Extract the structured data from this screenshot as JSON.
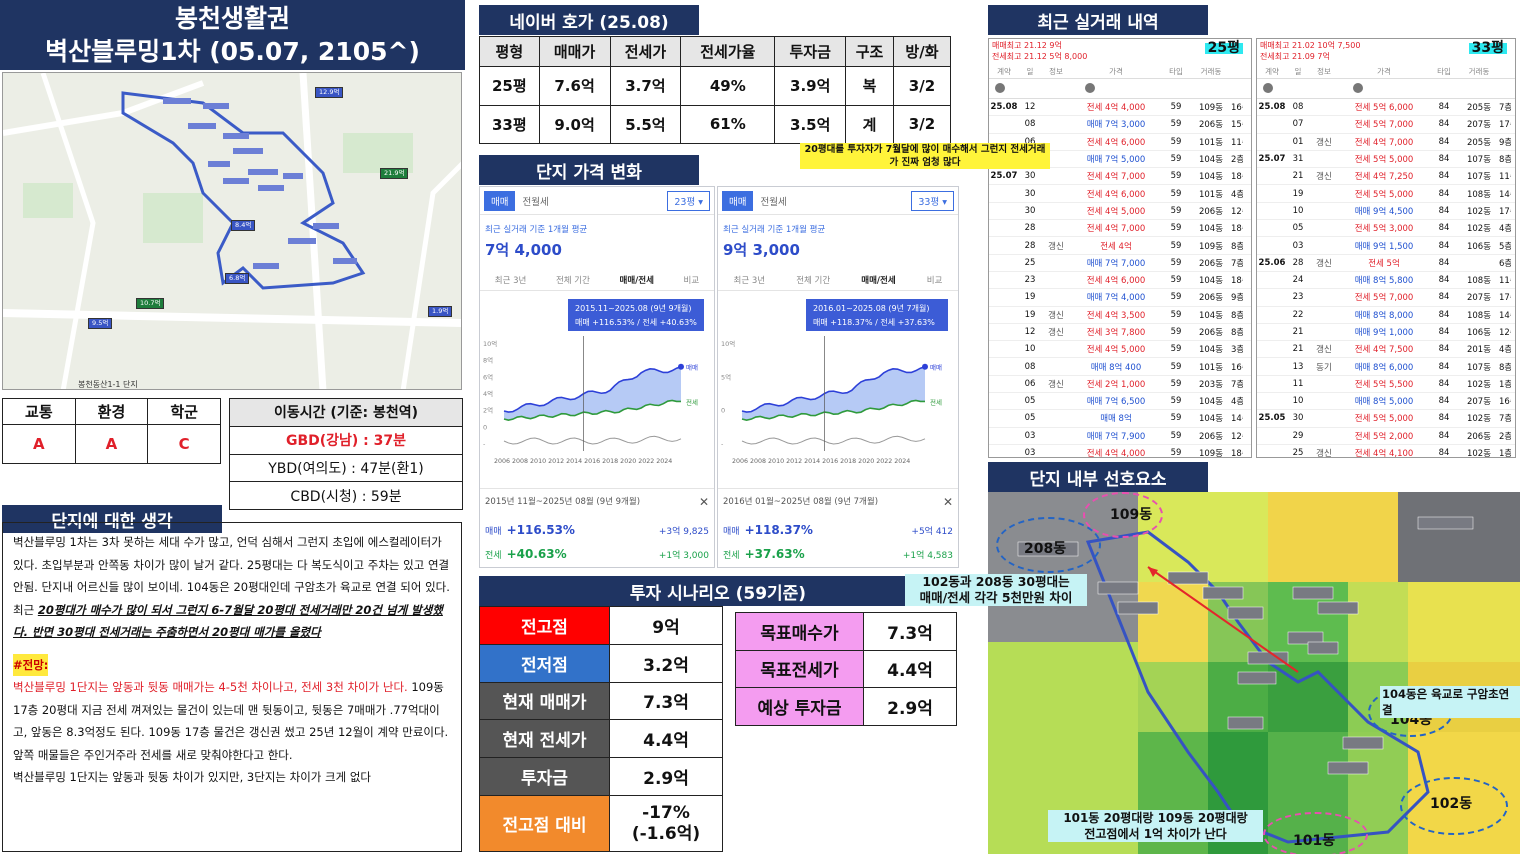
{
  "title": {
    "line1": "봉천생활권",
    "line2": "벽산블루밍1차 (05.07, 2105^)"
  },
  "scores": {
    "headers": [
      "교통",
      "환경",
      "학군"
    ],
    "values": [
      "A",
      "A",
      "C"
    ]
  },
  "commute": {
    "title": "이동시간 (기준: 봉천역)",
    "gbd": "GBD(강남) : 37분",
    "ybd": "YBD(여의도) : 47분(환1)",
    "cbd": "CBD(시청) : 59분"
  },
  "thoughts": {
    "title": "단지에 대한 생각",
    "p1": "벽산블루밍 1차는 3차 못하는 세대 수가 많고, 언덕 심해서 그런지 초입에 에스컬레이터가 있다. 초입부분과 안쪽동 차이가 많이 날거 같다. 25평대는 다 복도식이고 주차는 있고 연결 안됨. 단지내 어르신들 많이 보이네. 104동은 20평대인데 구암초가 육교로 연결 되어 있다.",
    "p2_prefix": "최근 ",
    "p2_em": "20평대가 매수가 많이 되서 그런지 6-7월달 20평대 전세거래만 20건 넘게 발생했다. 반면 30평대 전세거래는 주춤하면서 20평대 매가를 올렸다",
    "outlook_title": "#전망:",
    "outlook_red": "벽산블루밍 1단지는 앞동과 뒷동 매매가는 4-5천 차이나고, 전세 3천 차이가 난다.",
    "outlook_rest": " 109동 17층 20평대 지금 전세 껴져있는 물건이 있는데 맨 뒷동이고, 뒷동은 7매매가 .77억대이고, 앞동은 8.3억정도 된다. 109동 17층 물건은 갱신권 썼고 25년 12월이 계약 만료이다. 앞쪽 매물들은 주인거주라 전세를 새로 맞춰야한다고 한다.",
    "last": "벽산블루밍 1단지는 앞동과 뒷동 차이가 있지만, 3단지는 차이가 크게 없다"
  },
  "naver": {
    "title": "네이버 호가 (25.08)",
    "headers": [
      "평형",
      "매매가",
      "전세가",
      "전세가율",
      "투자금",
      "구조",
      "방/화"
    ],
    "rows": [
      [
        "25평",
        "7.6억",
        "3.7억",
        "49%",
        "3.9억",
        "복",
        "3/2"
      ],
      [
        "33평",
        "9.0억",
        "5.5억",
        "61%",
        "3.5억",
        "계",
        "3/2"
      ]
    ]
  },
  "price_change": {
    "title": "단지 가격 변화",
    "cards": [
      {
        "tab1": "매매",
        "tab2": "전월세",
        "size": "23평",
        "sub": "최근 실거래 기준 1개월 평균",
        "price": "7억 4,000",
        "nav": [
          "최근 3년",
          "전체 기간",
          "매매/전세",
          "비교"
        ],
        "tip_range": "2015.11~2025.08 (9년 9개월)",
        "tip_vals": "매매 +116.53% / 전세 +40.63%",
        "years": "2006 2008 2010 2012 2014 2016 2018 2020 2022 2024",
        "foot_range": "2015년 11월~2025년 08월 (9년 9개월)",
        "m_label": "매매",
        "m_pct": "+116.53%",
        "m_amt": "+3억 9,825",
        "j_label": "전세",
        "j_pct": "+40.63%",
        "j_amt": "+1억 3,000",
        "yticks": [
          "10억",
          "8억",
          "6억",
          "4억",
          "2억",
          "0",
          "-"
        ]
      },
      {
        "tab1": "매매",
        "tab2": "전월세",
        "size": "33평",
        "sub": "최근 실거래 기준 1개월 평균",
        "price": "9억 3,000",
        "nav": [
          "최근 3년",
          "전체 기간",
          "매매/전세",
          "비교"
        ],
        "tip_range": "2016.01~2025.08 (9년 7개월)",
        "tip_vals": "매매 +118.37% / 전세 +37.63%",
        "years": "2006 2008 2010 2012 2014 2016 2018 2020 2022 2024",
        "foot_range": "2016년 01월~2025년 08월 (9년 7개월)",
        "m_label": "매매",
        "m_pct": "+118.37%",
        "m_amt": "+5억 412",
        "j_label": "전세",
        "j_pct": "+37.63%",
        "j_amt": "+1억 4,583",
        "yticks": [
          "10억",
          "5억",
          "0",
          "-"
        ]
      }
    ]
  },
  "scenario": {
    "title": "투자 시나리오 (59기준)",
    "left": [
      [
        "전고점",
        "9억"
      ],
      [
        "전저점",
        "3.2억"
      ],
      [
        "현재 매매가",
        "7.3억"
      ],
      [
        "현재 전세가",
        "4.4억"
      ],
      [
        "투자금",
        "2.9억"
      ],
      [
        "전고점 대비",
        "-17%\n(-1.6억)"
      ]
    ],
    "right": [
      [
        "목표매수가",
        "7.3억"
      ],
      [
        "목표전세가",
        "4.4억"
      ],
      [
        "예상 투자금",
        "2.9억"
      ]
    ]
  },
  "recent": {
    "title": "최근 실거래 내역",
    "note": "20평대를 투자자가 7월달에 많이 매수해서 그런지 전세거래가 진짜 엄청 많다",
    "panels": [
      {
        "badge": "25평",
        "top1": "매매최고 21.12 9억",
        "top2": "전세최고 21.12 5억 8,000",
        "rows": [
          [
            "25.08",
            "12",
            "",
            "전세 4억 4,000",
            "59",
            "109동",
            "16층"
          ],
          [
            "",
            "08",
            "",
            "매매 7억 3,000",
            "59",
            "206동",
            "15층"
          ],
          [
            "",
            "06",
            "",
            "전세 4억 6,000",
            "59",
            "101동",
            "11층"
          ],
          [
            "",
            "02",
            "",
            "매매 7억 5,000",
            "59",
            "104동",
            "2층"
          ],
          [
            "25.07",
            "30",
            "",
            "전세 4억 7,000",
            "59",
            "104동",
            "18층"
          ],
          [
            "",
            "30",
            "",
            "전세 4억 6,000",
            "59",
            "101동",
            "4층"
          ],
          [
            "",
            "30",
            "",
            "전세 4억 5,000",
            "59",
            "206동",
            "12층"
          ],
          [
            "",
            "28",
            "",
            "전세 4억 7,000",
            "59",
            "104동",
            "18층"
          ],
          [
            "",
            "28",
            "갱신",
            "전세 4억",
            "59",
            "109동",
            "8층"
          ],
          [
            "",
            "25",
            "",
            "매매 7억 7,000",
            "59",
            "206동",
            "7층"
          ],
          [
            "",
            "23",
            "",
            "전세 4억 6,000",
            "59",
            "104동",
            "18층"
          ],
          [
            "",
            "19",
            "",
            "매매 7억 4,000",
            "59",
            "206동",
            "9층"
          ],
          [
            "",
            "19",
            "갱신",
            "전세 4억 3,500",
            "59",
            "104동",
            "8층"
          ],
          [
            "",
            "12",
            "갱신",
            "전세 3억 7,800",
            "59",
            "206동",
            "8층"
          ],
          [
            "",
            "10",
            "",
            "전세 4억 5,000",
            "59",
            "104동",
            "3층"
          ],
          [
            "",
            "08",
            "",
            "매매 8억 400",
            "59",
            "101동",
            "16층"
          ],
          [
            "",
            "06",
            "갱신",
            "전세 2억 1,000",
            "59",
            "203동",
            "7층"
          ],
          [
            "",
            "05",
            "",
            "매매 7억 6,500",
            "59",
            "104동",
            "4층"
          ],
          [
            "",
            "05",
            "",
            "매매 8억",
            "59",
            "104동",
            "14층"
          ],
          [
            "",
            "03",
            "",
            "매매 7억 7,900",
            "59",
            "206동",
            "12층"
          ],
          [
            "",
            "03",
            "",
            "전세 4억 4,000",
            "59",
            "109동",
            "18층"
          ]
        ]
      },
      {
        "badge": "33평",
        "top1": "매매최고 21.02 10억 7,500",
        "top2": "전세최고 21.09 7억",
        "rows": [
          [
            "25.08",
            "08",
            "",
            "전세 5억 6,000",
            "84",
            "205동",
            "7층"
          ],
          [
            "",
            "07",
            "",
            "전세 5억 7,000",
            "84",
            "207동",
            "17층"
          ],
          [
            "",
            "01",
            "갱신",
            "전세 4억 7,000",
            "84",
            "205동",
            "9층"
          ],
          [
            "25.07",
            "31",
            "",
            "전세 5억 5,000",
            "84",
            "107동",
            "8층"
          ],
          [
            "",
            "21",
            "갱신",
            "전세 4억 7,250",
            "84",
            "107동",
            "11층"
          ],
          [
            "",
            "19",
            "",
            "전세 5억 5,000",
            "84",
            "108동",
            "14층"
          ],
          [
            "",
            "10",
            "",
            "매매 9억 4,500",
            "84",
            "102동",
            "17층"
          ],
          [
            "",
            "05",
            "",
            "전세 5억 3,000",
            "84",
            "102동",
            "4층"
          ],
          [
            "",
            "03",
            "",
            "매매 9억 1,500",
            "84",
            "106동",
            "5층"
          ],
          [
            "25.06",
            "28",
            "갱신",
            "전세 5억",
            "84",
            "",
            "6층"
          ],
          [
            "",
            "24",
            "",
            "매매 8억 5,800",
            "84",
            "108동",
            "11층"
          ],
          [
            "",
            "23",
            "",
            "전세 5억 7,000",
            "84",
            "207동",
            "17층"
          ],
          [
            "",
            "22",
            "",
            "매매 8억 8,000",
            "84",
            "108동",
            "14층"
          ],
          [
            "",
            "21",
            "",
            "매매 9억 1,000",
            "84",
            "106동",
            "12층"
          ],
          [
            "",
            "21",
            "갱신",
            "전세 4억 7,500",
            "84",
            "201동",
            "4층"
          ],
          [
            "",
            "13",
            "동기",
            "매매 8억 6,000",
            "84",
            "107동",
            "8층"
          ],
          [
            "",
            "11",
            "",
            "전세 5억 5,500",
            "84",
            "102동",
            "1층"
          ],
          [
            "",
            "10",
            "",
            "매매 8억 5,000",
            "84",
            "207동",
            "16층"
          ],
          [
            "25.05",
            "30",
            "",
            "전세 5억 5,000",
            "84",
            "102동",
            "7층"
          ],
          [
            "",
            "29",
            "",
            "전세 5억 2,000",
            "84",
            "206동",
            "2층"
          ],
          [
            "",
            "25",
            "갱신",
            "전세 4억 4,100",
            "84",
            "102동",
            "1층"
          ]
        ]
      }
    ]
  },
  "preference": {
    "title": "단지 내부 선호요소",
    "note1": "102동과 208동 30평대는\n매매/전세 각각 5천만원 차이",
    "note2": "104동은 육교로 구암초연결",
    "note3": "101동 20평대랑 109동 20평대랑\n전고점에서 1억 차이가 난다",
    "labels": {
      "d109": "109동",
      "d208": "208동",
      "d104": "104동",
      "d102": "102동",
      "d101": "101동"
    }
  },
  "map_labels": {
    "price1": "12.9억",
    "price2": "21.9억",
    "price3": "8.4억",
    "price4": "6.8억",
    "price5": "10.7억",
    "price6": "9.5억",
    "price7": "1.9억",
    "station": "봉천동산1-1 단지"
  }
}
